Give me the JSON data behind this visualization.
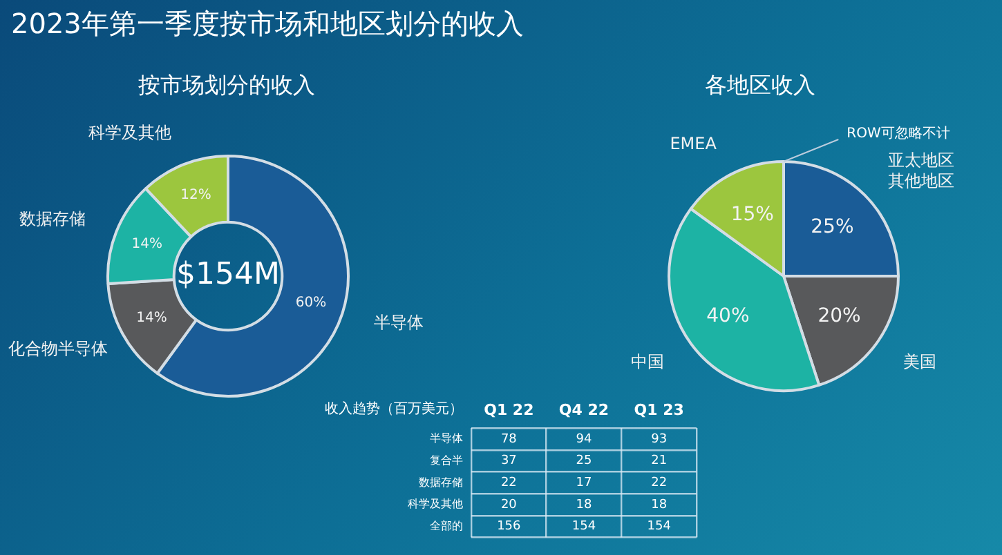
{
  "chart_data": [
    {
      "type": "donut",
      "title": "2023年第一季度按市场和地区划分的收入",
      "subtitle": "按市场划分的收入",
      "categories": [
        "半导体",
        "化合物半导体",
        "数据存储",
        "科学及其他"
      ],
      "values": [
        60,
        14,
        14,
        12
      ],
      "colors": [
        "#1a5c97",
        "#58595b",
        "#1db3a4",
        "#9cc63e"
      ],
      "value_labels": [
        "60%",
        "14%",
        "14%",
        "12%"
      ],
      "annotations": [
        "$154M"
      ]
    },
    {
      "type": "pie",
      "title": "各地区收入",
      "categories": [
        "亚太地区其他地区",
        "美国",
        "中国",
        "EMEA"
      ],
      "values": [
        25,
        20,
        40,
        15
      ],
      "colors": [
        "#1a5c97",
        "#58595b",
        "#1db3a4",
        "#9cc63e"
      ],
      "value_labels": [
        "25%",
        "20%",
        "40%",
        "15%"
      ],
      "annotations": [
        "ROW可忽略不计"
      ]
    },
    {
      "type": "heatmap",
      "title": "收入趋势（百万美元）",
      "categories": [
        "Q1 22",
        "Q4 22",
        "Q1 23"
      ],
      "y_categories": [
        "半导体",
        "复合半",
        "数据存储",
        "科学及其他",
        "全部的"
      ],
      "cells": [
        [
          78,
          94,
          93
        ],
        [
          37,
          25,
          21
        ],
        [
          22,
          17,
          22
        ],
        [
          20,
          18,
          18
        ],
        [
          156,
          154,
          154
        ]
      ],
      "data_labels": true
    }
  ]
}
